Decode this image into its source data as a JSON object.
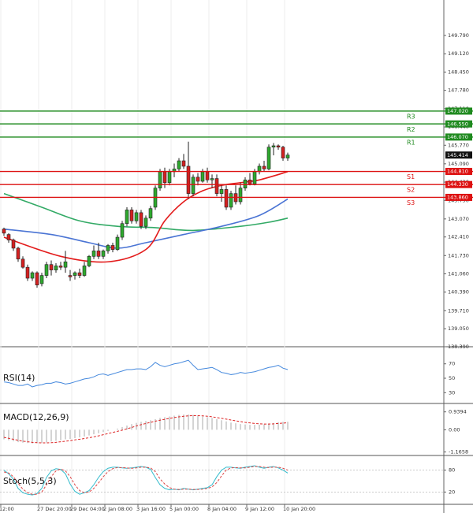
{
  "chart_data": [
    {
      "type": "candlestick",
      "title": "",
      "ylim": [
        138.39,
        150.8
      ],
      "y_ticks": [
        "149.790",
        "149.120",
        "148.450",
        "147.780",
        "147.110",
        "146.440",
        "145.770",
        "145.090",
        "144.420",
        "143.750",
        "143.070",
        "142.410",
        "141.730",
        "141.060",
        "140.390",
        "139.710",
        "139.050",
        "138.390"
      ],
      "x_tick_labels": [
        "12:00",
        "27 Dec 20:00",
        "29 Dec 04:00",
        "2 Jan 08:00",
        "3 Jan 16:00",
        "5 Jan 00:00",
        "8 Jan 04:00",
        "9 Jan 12:00",
        "10 Jan 20:00"
      ],
      "last_price": "145.414",
      "levels": [
        {
          "label": "R3",
          "value": 147.02,
          "value_label": "147.020",
          "color": "#1f8a1f"
        },
        {
          "label": "R2",
          "value": 146.55,
          "value_label": "146.550",
          "color": "#1f8a1f"
        },
        {
          "label": "R1",
          "value": 146.07,
          "value_label": "146.070",
          "color": "#1f8a1f"
        },
        {
          "label": "S1",
          "value": 144.81,
          "value_label": "144.810",
          "color": "#dd1111"
        },
        {
          "label": "S2",
          "value": 144.33,
          "value_label": "144.330",
          "color": "#dd1111"
        },
        {
          "label": "S3",
          "value": 143.86,
          "value_label": "143.860",
          "color": "#dd1111"
        }
      ],
      "candles": [
        [
          142.7,
          142.75,
          142.45,
          142.55
        ],
        [
          142.5,
          142.55,
          142.2,
          142.3
        ],
        [
          142.3,
          142.35,
          141.9,
          142.0
        ],
        [
          142.0,
          142.05,
          141.5,
          141.6
        ],
        [
          141.6,
          141.7,
          141.25,
          141.3
        ],
        [
          141.3,
          141.4,
          140.8,
          140.9
        ],
        [
          140.9,
          141.15,
          140.8,
          141.1
        ],
        [
          141.1,
          141.15,
          140.55,
          140.65
        ],
        [
          140.7,
          141.1,
          140.6,
          141.0
        ],
        [
          141.0,
          141.5,
          140.9,
          141.4
        ],
        [
          141.4,
          141.55,
          141.0,
          141.2
        ],
        [
          141.2,
          141.45,
          141.1,
          141.35
        ],
        [
          141.35,
          141.5,
          141.2,
          141.3
        ],
        [
          141.3,
          141.9,
          141.1,
          141.5
        ],
        [
          141.0,
          141.2,
          140.8,
          140.95
        ],
        [
          141.0,
          141.15,
          140.85,
          141.1
        ],
        [
          141.1,
          141.25,
          140.9,
          141.0
        ],
        [
          141.0,
          141.5,
          140.95,
          141.35
        ],
        [
          141.35,
          141.75,
          141.3,
          141.7
        ],
        [
          141.7,
          142.1,
          141.6,
          141.9
        ],
        [
          141.9,
          142.2,
          141.6,
          141.7
        ],
        [
          141.7,
          141.95,
          141.6,
          141.9
        ],
        [
          141.9,
          142.15,
          141.8,
          142.1
        ],
        [
          142.1,
          142.2,
          141.85,
          141.95
        ],
        [
          141.95,
          142.5,
          141.9,
          142.4
        ],
        [
          142.4,
          143.0,
          142.3,
          142.9
        ],
        [
          142.9,
          143.5,
          142.8,
          143.4
        ],
        [
          143.4,
          143.5,
          142.9,
          143.0
        ],
        [
          143.0,
          143.4,
          142.9,
          143.3
        ],
        [
          143.3,
          143.4,
          142.7,
          142.8
        ],
        [
          142.8,
          143.2,
          142.7,
          143.1
        ],
        [
          143.1,
          143.55,
          143.0,
          143.45
        ],
        [
          143.5,
          144.3,
          143.4,
          144.2
        ],
        [
          144.2,
          144.9,
          144.1,
          144.8
        ],
        [
          144.8,
          144.95,
          144.2,
          144.4
        ],
        [
          144.4,
          144.9,
          144.3,
          144.8
        ],
        [
          144.8,
          145.1,
          144.6,
          144.9
        ],
        [
          144.9,
          145.3,
          144.8,
          145.2
        ],
        [
          145.2,
          145.45,
          144.9,
          145.0
        ],
        [
          145.0,
          145.9,
          143.8,
          144.0
        ],
        [
          144.0,
          144.7,
          143.9,
          144.6
        ],
        [
          144.6,
          144.75,
          144.3,
          144.45
        ],
        [
          144.45,
          144.9,
          144.4,
          144.8
        ],
        [
          144.8,
          144.95,
          144.4,
          144.5
        ],
        [
          144.5,
          144.7,
          144.2,
          144.55
        ],
        [
          144.55,
          144.7,
          143.9,
          144.0
        ],
        [
          144.0,
          144.3,
          143.7,
          144.15
        ],
        [
          144.15,
          144.3,
          143.4,
          143.5
        ],
        [
          143.5,
          144.1,
          143.4,
          144.0
        ],
        [
          144.0,
          144.3,
          143.6,
          143.7
        ],
        [
          143.7,
          144.4,
          143.6,
          144.2
        ],
        [
          144.2,
          144.6,
          144.1,
          144.5
        ],
        [
          144.5,
          144.75,
          144.3,
          144.35
        ],
        [
          144.35,
          144.9,
          144.3,
          144.8
        ],
        [
          144.8,
          145.1,
          144.7,
          145.0
        ],
        [
          145.0,
          145.2,
          144.8,
          144.9
        ],
        [
          144.9,
          145.8,
          144.85,
          145.7
        ],
        [
          145.7,
          145.85,
          145.4,
          145.75
        ],
        [
          145.75,
          145.8,
          145.6,
          145.7
        ],
        [
          145.7,
          145.75,
          145.2,
          145.3
        ],
        [
          145.3,
          145.5,
          145.2,
          145.41
        ]
      ],
      "ma_fast": {
        "color": "#e31b1b",
        "values": [
          [
            0,
            142.4
          ],
          [
            12,
            141.7
          ],
          [
            22,
            141.5
          ],
          [
            30,
            141.95
          ],
          [
            34,
            143.0
          ],
          [
            38,
            143.7
          ],
          [
            42,
            144.1
          ],
          [
            46,
            144.3
          ],
          [
            50,
            144.4
          ],
          [
            54,
            144.5
          ],
          [
            60,
            144.8
          ]
        ]
      },
      "ma_mid": {
        "color": "#4a74d4",
        "values": [
          [
            0,
            142.7
          ],
          [
            10,
            142.5
          ],
          [
            18,
            142.2
          ],
          [
            24,
            142.0
          ],
          [
            30,
            142.2
          ],
          [
            38,
            142.5
          ],
          [
            46,
            142.8
          ],
          [
            54,
            143.2
          ],
          [
            60,
            143.8
          ]
        ]
      },
      "ma_slow": {
        "color": "#33aa66",
        "values": [
          [
            0,
            144.0
          ],
          [
            8,
            143.5
          ],
          [
            16,
            143.0
          ],
          [
            24,
            142.8
          ],
          [
            32,
            142.75
          ],
          [
            40,
            142.65
          ],
          [
            50,
            142.8
          ],
          [
            56,
            142.95
          ],
          [
            60,
            143.1
          ]
        ]
      }
    },
    {
      "type": "line",
      "name": "RSI(14)",
      "ylim": [
        15,
        85
      ],
      "y_ticks": [
        70,
        50,
        30
      ],
      "series": [
        {
          "color": "#4488dd",
          "values": [
            45,
            44,
            42,
            40,
            40,
            42,
            38,
            40,
            41,
            43,
            43,
            45,
            44,
            42,
            43,
            45,
            47,
            49,
            50,
            52,
            55,
            56,
            54,
            56,
            58,
            60,
            62,
            62,
            63,
            63,
            62,
            66,
            72,
            68,
            66,
            68,
            70,
            71,
            73,
            75,
            68,
            62,
            63,
            64,
            65,
            62,
            58,
            57,
            55,
            56,
            58,
            57,
            58,
            59,
            61,
            63,
            65,
            66,
            68,
            64,
            62
          ]
        }
      ]
    },
    {
      "type": "bar",
      "name": "MACD(12,26,9)",
      "ylim": [
        -1.35,
        1.05
      ],
      "y_ticks": [
        "0.9394",
        "0.00",
        "-1.1658"
      ],
      "bar_color": "#aaaaaa",
      "signal_color": "#dd2222",
      "values": [
        -0.5,
        -0.55,
        -0.6,
        -0.65,
        -0.68,
        -0.7,
        -0.72,
        -0.7,
        -0.68,
        -0.66,
        -0.62,
        -0.58,
        -0.55,
        -0.5,
        -0.48,
        -0.44,
        -0.4,
        -0.35,
        -0.3,
        -0.24,
        -0.18,
        -0.12,
        -0.06,
        0.0,
        0.06,
        0.14,
        0.22,
        0.3,
        0.36,
        0.42,
        0.46,
        0.5,
        0.56,
        0.62,
        0.66,
        0.7,
        0.74,
        0.78,
        0.8,
        0.8,
        0.78,
        0.74,
        0.7,
        0.66,
        0.62,
        0.56,
        0.5,
        0.44,
        0.38,
        0.34,
        0.3,
        0.28,
        0.26,
        0.26,
        0.27,
        0.29,
        0.32,
        0.36,
        0.4,
        0.42,
        0.42
      ],
      "signal": [
        -0.4,
        -0.45,
        -0.5,
        -0.55,
        -0.6,
        -0.63,
        -0.66,
        -0.68,
        -0.69,
        -0.69,
        -0.68,
        -0.66,
        -0.63,
        -0.6,
        -0.57,
        -0.53,
        -0.5,
        -0.46,
        -0.42,
        -0.37,
        -0.32,
        -0.26,
        -0.2,
        -0.14,
        -0.08,
        -0.02,
        0.05,
        0.12,
        0.2,
        0.27,
        0.33,
        0.39,
        0.45,
        0.5,
        0.55,
        0.6,
        0.64,
        0.68,
        0.71,
        0.73,
        0.74,
        0.74,
        0.73,
        0.71,
        0.68,
        0.64,
        0.6,
        0.56,
        0.51,
        0.47,
        0.43,
        0.39,
        0.36,
        0.33,
        0.31,
        0.3,
        0.3,
        0.31,
        0.33,
        0.35,
        0.37
      ]
    },
    {
      "type": "line",
      "name": "Stoch(5,5,3)",
      "ylim": [
        -5,
        105
      ],
      "y_ticks": [
        80,
        20
      ],
      "series": [
        {
          "color": "#33bbcc",
          "values": [
            80,
            70,
            55,
            30,
            18,
            14,
            12,
            16,
            30,
            60,
            78,
            84,
            82,
            70,
            42,
            22,
            14,
            18,
            24,
            40,
            60,
            76,
            85,
            88,
            88,
            86,
            85,
            86,
            88,
            90,
            88,
            82,
            60,
            40,
            30,
            26,
            28,
            26,
            30,
            28,
            26,
            28,
            30,
            32,
            40,
            62,
            80,
            88,
            88,
            86,
            85,
            88,
            90,
            92,
            88,
            85,
            88,
            90,
            86,
            80,
            72
          ]
        },
        {
          "color": "#dd4444",
          "dash": true,
          "values": [
            75,
            72,
            62,
            44,
            28,
            18,
            14,
            14,
            20,
            40,
            62,
            78,
            83,
            78,
            62,
            40,
            24,
            18,
            20,
            30,
            45,
            62,
            76,
            84,
            87,
            87,
            86,
            85,
            86,
            88,
            88,
            86,
            76,
            56,
            42,
            32,
            28,
            27,
            28,
            28,
            27,
            27,
            28,
            30,
            34,
            46,
            64,
            80,
            86,
            87,
            86,
            86,
            88,
            90,
            90,
            88,
            87,
            88,
            88,
            85,
            80
          ]
        }
      ]
    }
  ]
}
